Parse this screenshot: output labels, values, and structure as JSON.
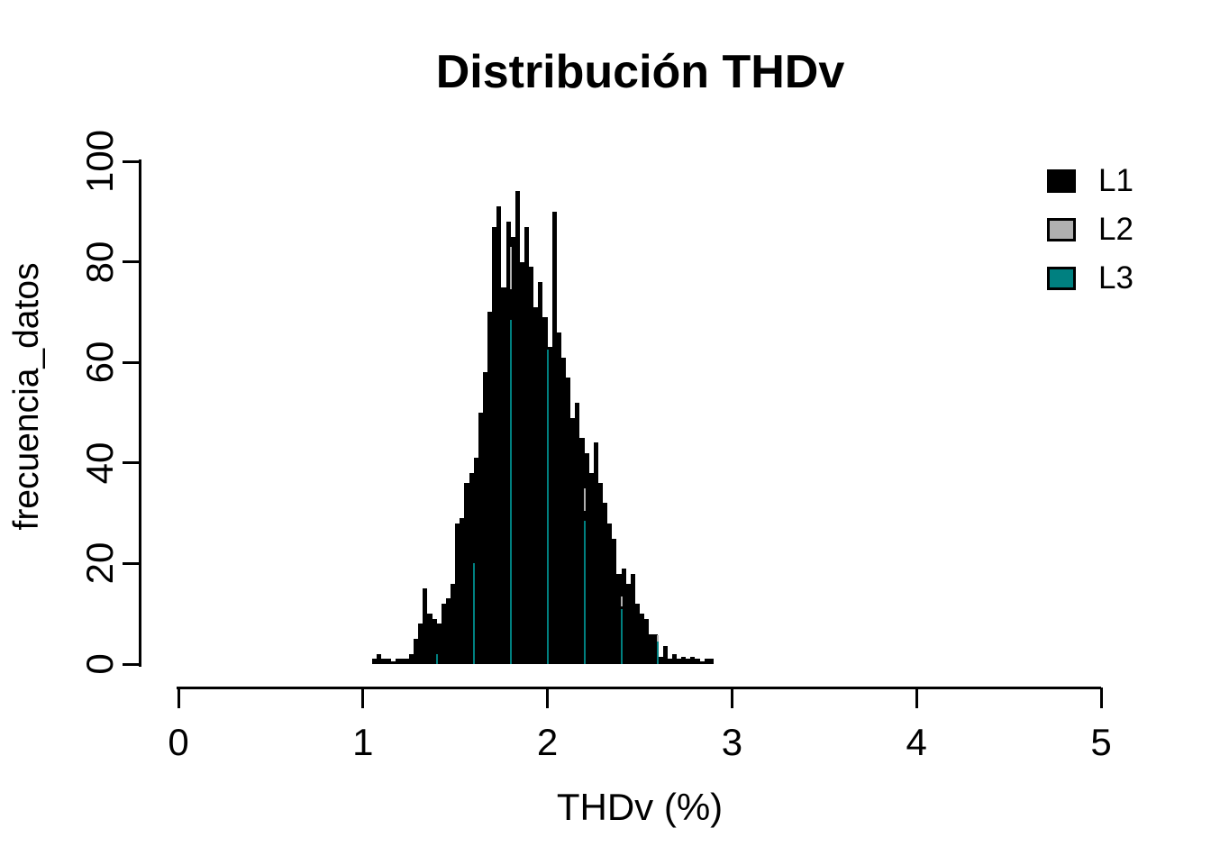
{
  "chart_data": {
    "type": "bar",
    "subtype": "histogram",
    "title": "Distribución THDv",
    "xlabel": "THDv (%)",
    "ylabel": "frecuencia_datos",
    "xlim": [
      0,
      5
    ],
    "ylim": [
      0,
      100
    ],
    "x_ticks": [
      0,
      1,
      2,
      3,
      4,
      5
    ],
    "y_ticks": [
      0,
      20,
      40,
      60,
      80,
      100
    ],
    "grid": false,
    "legend_position": "top-right",
    "legend": [
      {
        "label": "L1",
        "color": "#000000"
      },
      {
        "label": "L2",
        "color": "#b0b0b0"
      },
      {
        "label": "L3",
        "color": "#008080"
      }
    ],
    "bin_start": 1.05,
    "bin_width": 0.025,
    "series": [
      {
        "name": "L1",
        "color": "#000000",
        "values": [
          1,
          2,
          1,
          1,
          0.5,
          1,
          1,
          1,
          2,
          5,
          8,
          15,
          10,
          9,
          8,
          12,
          13,
          16,
          28,
          29,
          36,
          38,
          41,
          50,
          58,
          70,
          87,
          91,
          75,
          88,
          85,
          94,
          80,
          87,
          79,
          71,
          76,
          69,
          63,
          90,
          66,
          61,
          57,
          49,
          52,
          45,
          42,
          38,
          44,
          36,
          32,
          28,
          25,
          18,
          19,
          16,
          18,
          12,
          10,
          9,
          6,
          6,
          1.5,
          3.5,
          1,
          2,
          1,
          1.5,
          1,
          1.5,
          1,
          0.5,
          1,
          1
        ]
      }
    ],
    "overlay_bin_edges": {
      "note": "thin vertical lines of the overlapped L3 (teal) and L2 (gray) histograms visible at their bin boundaries",
      "teal_color": "#008080",
      "gray_color": "#b0b0b0",
      "lines": [
        {
          "x": 1.4,
          "teal_top": 2,
          "gray_from": null,
          "gray_to": null
        },
        {
          "x": 1.6,
          "teal_top": 20,
          "gray_from": null,
          "gray_to": null
        },
        {
          "x": 1.8,
          "teal_top": 68.5,
          "gray_from": 74.5,
          "gray_to": 83
        },
        {
          "x": 2.0,
          "teal_top": 62.5,
          "gray_from": null,
          "gray_to": null
        },
        {
          "x": 2.2,
          "teal_top": 28.5,
          "gray_from": 30.5,
          "gray_to": 35
        },
        {
          "x": 2.4,
          "teal_top": 11,
          "gray_from": 11.5,
          "gray_to": 13.5
        },
        {
          "x": 2.6,
          "teal_top": 4.5,
          "gray_from": 4.5,
          "gray_to": 5.7
        }
      ]
    }
  }
}
